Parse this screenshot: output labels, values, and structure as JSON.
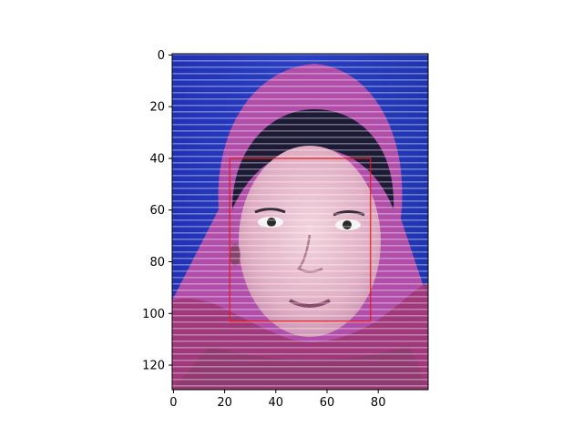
{
  "figure": {
    "image_extent": {
      "x": [
        0,
        99
      ],
      "y": [
        0,
        129
      ]
    },
    "x_ticks": [
      0,
      20,
      40,
      60,
      80
    ],
    "y_ticks": [
      0,
      20,
      40,
      60,
      80,
      100,
      120
    ],
    "box": {
      "x0": 22,
      "y0": 40,
      "x1": 77,
      "y1": 103
    },
    "box_color": "#e41a1c",
    "photo": {
      "background": "#2536b8",
      "scarf": "#b34aa6",
      "skin": "#e7b9c8",
      "hair": "#1a1730",
      "lower_scarf": "#a13872"
    }
  }
}
